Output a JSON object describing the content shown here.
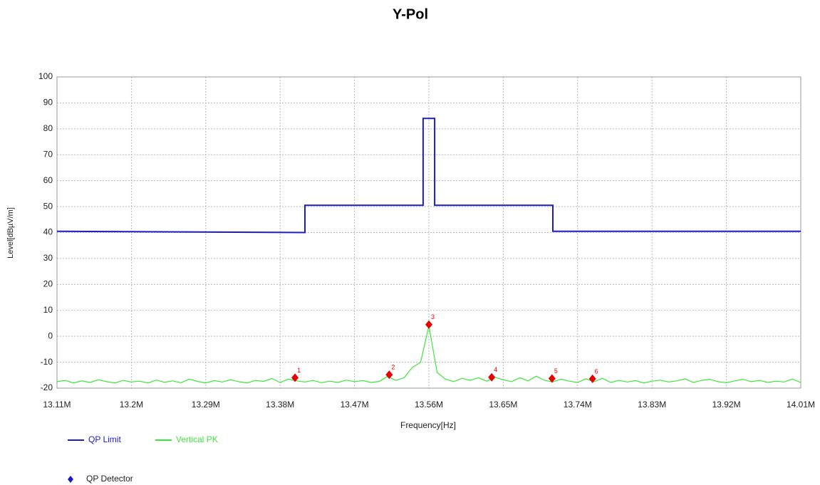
{
  "chart_data": {
    "type": "line",
    "title": "Y-Pol",
    "xlabel": "Frequency[Hz]",
    "ylabel": "Level[dBµV/m]",
    "xlim": [
      13110000,
      14010000
    ],
    "ylim": [
      -20,
      100
    ],
    "xticks": [
      {
        "value": 13110000,
        "label": "13.11M"
      },
      {
        "value": 13200000,
        "label": "13.2M"
      },
      {
        "value": 13290000,
        "label": "13.29M"
      },
      {
        "value": 13380000,
        "label": "13.38M"
      },
      {
        "value": 13470000,
        "label": "13.47M"
      },
      {
        "value": 13560000,
        "label": "13.56M"
      },
      {
        "value": 13650000,
        "label": "13.65M"
      },
      {
        "value": 13740000,
        "label": "13.74M"
      },
      {
        "value": 13830000,
        "label": "13.83M"
      },
      {
        "value": 13920000,
        "label": "13.92M"
      },
      {
        "value": 14010000,
        "label": "14.01M"
      }
    ],
    "yticks": [
      -20,
      -10,
      0,
      10,
      20,
      30,
      40,
      50,
      60,
      70,
      80,
      90,
      100
    ],
    "grid": true,
    "series": [
      {
        "name": "QP Limit",
        "color": "#1c1cc8",
        "x": [
          13110000,
          13410000,
          13410000,
          13553000,
          13553000,
          13567000,
          13567000,
          13710000,
          13710000,
          14010000
        ],
        "values": [
          40.5,
          40,
          50.5,
          50.5,
          84,
          84,
          50.5,
          50.5,
          40.5,
          40.5
        ]
      },
      {
        "name": "Vertical PK",
        "color": "#3ce63c",
        "x": [
          13110000,
          13120000,
          13130000,
          13140000,
          13150000,
          13160000,
          13170000,
          13180000,
          13190000,
          13200000,
          13210000,
          13220000,
          13230000,
          13240000,
          13250000,
          13260000,
          13270000,
          13280000,
          13290000,
          13300000,
          13310000,
          13320000,
          13330000,
          13340000,
          13350000,
          13360000,
          13370000,
          13380000,
          13390000,
          13400000,
          13410000,
          13420000,
          13430000,
          13440000,
          13450000,
          13460000,
          13470000,
          13480000,
          13490000,
          13500000,
          13510000,
          13520000,
          13530000,
          13540000,
          13550000,
          13560000,
          13570000,
          13580000,
          13590000,
          13600000,
          13610000,
          13620000,
          13630000,
          13640000,
          13650000,
          13660000,
          13670000,
          13680000,
          13690000,
          13700000,
          13710000,
          13720000,
          13730000,
          13740000,
          13750000,
          13760000,
          13770000,
          13780000,
          13790000,
          13800000,
          13810000,
          13820000,
          13830000,
          13840000,
          13850000,
          13860000,
          13870000,
          13880000,
          13890000,
          13900000,
          13910000,
          13920000,
          13930000,
          13940000,
          13950000,
          13960000,
          13970000,
          13980000,
          13990000,
          14000000,
          14010000
        ],
        "values": [
          -17.5,
          -17,
          -18,
          -17.2,
          -17.8,
          -16.8,
          -17.5,
          -18,
          -17,
          -17.6,
          -17.3,
          -18,
          -16.9,
          -17.7,
          -17.2,
          -17.9,
          -16.5,
          -17.4,
          -18,
          -17.1,
          -17.6,
          -16.8,
          -17.5,
          -18,
          -17,
          -17.4,
          -16.3,
          -17.8,
          -16.5,
          -17.2,
          -17.6,
          -17,
          -17.9,
          -17.3,
          -17.8,
          -16.9,
          -17.5,
          -17.1,
          -17.8,
          -17.4,
          -15.5,
          -17,
          -16,
          -12,
          -10,
          4,
          -14,
          -16.5,
          -17.5,
          -16.2,
          -17,
          -16,
          -17.3,
          -15.8,
          -16.8,
          -17.5,
          -16,
          -17.2,
          -15.4,
          -17,
          -17.6,
          -16.5,
          -17.3,
          -17.8,
          -16.4,
          -17.5,
          -16.2,
          -17.8,
          -17,
          -17.6,
          -17.1,
          -18,
          -17.3,
          -16.9,
          -17.6,
          -17.2,
          -16.4,
          -17.8,
          -17,
          -16.6,
          -17.5,
          -17.9,
          -17.2,
          -16.6,
          -17.5,
          -17,
          -17.8,
          -17.3,
          -17.6,
          -16.5,
          -17.8
        ]
      },
      {
        "name": "QP Detector",
        "color": "#1c1cc8",
        "marker": "diamond",
        "marker_color": "#e60000",
        "x": [
          13398000,
          13512000,
          13560000,
          13636000,
          13709000,
          13758000
        ],
        "values": [
          -16,
          -14.8,
          4.5,
          -15.8,
          -16.3,
          -16.4
        ],
        "labels": [
          "1",
          "2",
          "3",
          "4",
          "5",
          "6"
        ]
      }
    ]
  }
}
